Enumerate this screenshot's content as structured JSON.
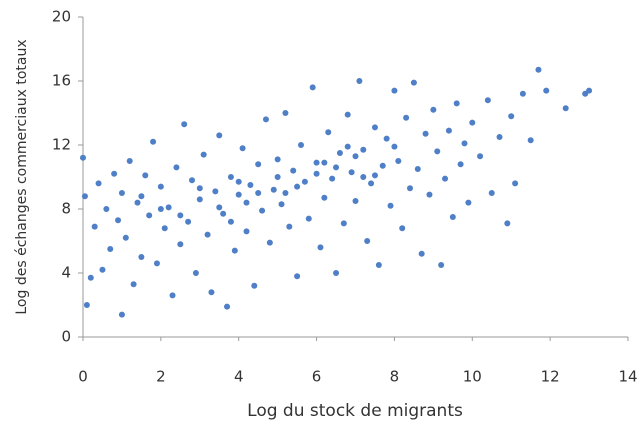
{
  "chart_data": {
    "type": "scatter",
    "x_label": "Log du stock de migrants",
    "y_label": "Log des échanges commerciaux totaux",
    "color": "#4f7fc7",
    "xlim": [
      0,
      14
    ],
    "xticks": [
      0,
      2,
      4,
      6,
      8,
      10,
      12,
      14
    ],
    "ylim": [
      0,
      20
    ],
    "yticks": [
      0,
      4,
      8,
      12,
      16,
      20
    ],
    "x": [
      0.0,
      0.05,
      0.1,
      0.2,
      0.3,
      0.4,
      0.5,
      0.6,
      0.7,
      0.8,
      0.9,
      1.0,
      1.0,
      1.1,
      1.2,
      1.3,
      1.4,
      1.5,
      1.6,
      1.7,
      1.8,
      1.9,
      2.0,
      2.1,
      2.2,
      2.3,
      2.4,
      2.5,
      2.6,
      2.7,
      2.8,
      2.9,
      3.0,
      3.1,
      3.2,
      3.3,
      3.4,
      3.5,
      3.6,
      3.7,
      3.8,
      3.9,
      4.0,
      4.1,
      4.2,
      4.3,
      4.4,
      4.5,
      4.6,
      4.7,
      4.8,
      4.9,
      5.0,
      5.1,
      5.2,
      5.3,
      5.4,
      5.5,
      5.6,
      5.7,
      5.8,
      5.9,
      6.0,
      6.1,
      6.2,
      6.3,
      6.4,
      6.5,
      6.6,
      6.7,
      6.8,
      6.9,
      7.0,
      7.1,
      7.2,
      7.3,
      7.4,
      7.5,
      7.6,
      7.7,
      7.8,
      7.9,
      8.0,
      8.1,
      8.2,
      8.3,
      8.4,
      8.5,
      8.6,
      8.7,
      8.8,
      8.9,
      9.0,
      9.1,
      9.2,
      9.3,
      9.4,
      9.5,
      9.6,
      9.7,
      9.8,
      9.9,
      10.0,
      10.2,
      10.4,
      10.5,
      10.7,
      10.9,
      11.0,
      11.1,
      11.3,
      11.5,
      11.7,
      11.9,
      12.4,
      12.9,
      13.0,
      3.0,
      3.5,
      4.0,
      4.5,
      5.0,
      5.5,
      6.0,
      6.5,
      7.0,
      7.5,
      2.0,
      2.5,
      1.5,
      4.2,
      5.2,
      6.2,
      6.8,
      7.2,
      8.0,
      3.8
    ],
    "y": [
      11.2,
      8.8,
      2.0,
      3.7,
      6.9,
      9.6,
      4.2,
      8.0,
      5.5,
      10.2,
      7.3,
      1.4,
      9.0,
      6.2,
      11.0,
      3.3,
      8.4,
      5.0,
      10.1,
      7.6,
      12.2,
      4.6,
      9.4,
      6.8,
      8.1,
      2.6,
      10.6,
      5.8,
      13.3,
      7.2,
      9.8,
      4.0,
      8.6,
      11.4,
      6.4,
      2.8,
      9.1,
      12.6,
      7.7,
      1.9,
      10.0,
      5.4,
      8.9,
      11.8,
      6.6,
      9.5,
      3.2,
      10.8,
      7.9,
      13.6,
      5.9,
      9.2,
      11.1,
      8.3,
      14.0,
      6.9,
      10.4,
      3.8,
      12.0,
      9.7,
      7.4,
      15.6,
      10.9,
      5.6,
      8.7,
      12.8,
      9.9,
      4.0,
      11.5,
      7.1,
      13.9,
      10.3,
      8.5,
      16.0,
      11.7,
      6.0,
      9.6,
      13.1,
      4.5,
      10.7,
      12.4,
      8.2,
      15.4,
      11.0,
      6.8,
      13.7,
      9.3,
      15.9,
      10.5,
      5.2,
      12.7,
      8.9,
      14.2,
      11.6,
      4.5,
      9.9,
      12.9,
      7.5,
      14.6,
      10.8,
      12.1,
      8.4,
      13.4,
      11.3,
      14.8,
      9.0,
      12.5,
      7.1,
      13.8,
      9.6,
      15.2,
      12.3,
      16.7,
      15.4,
      14.3,
      15.2,
      15.4,
      9.3,
      8.1,
      9.7,
      9.0,
      10.0,
      9.4,
      10.2,
      10.6,
      11.3,
      10.1,
      8.0,
      7.6,
      8.8,
      8.4,
      9.0,
      10.9,
      11.9,
      10.0,
      11.9,
      7.2
    ]
  }
}
